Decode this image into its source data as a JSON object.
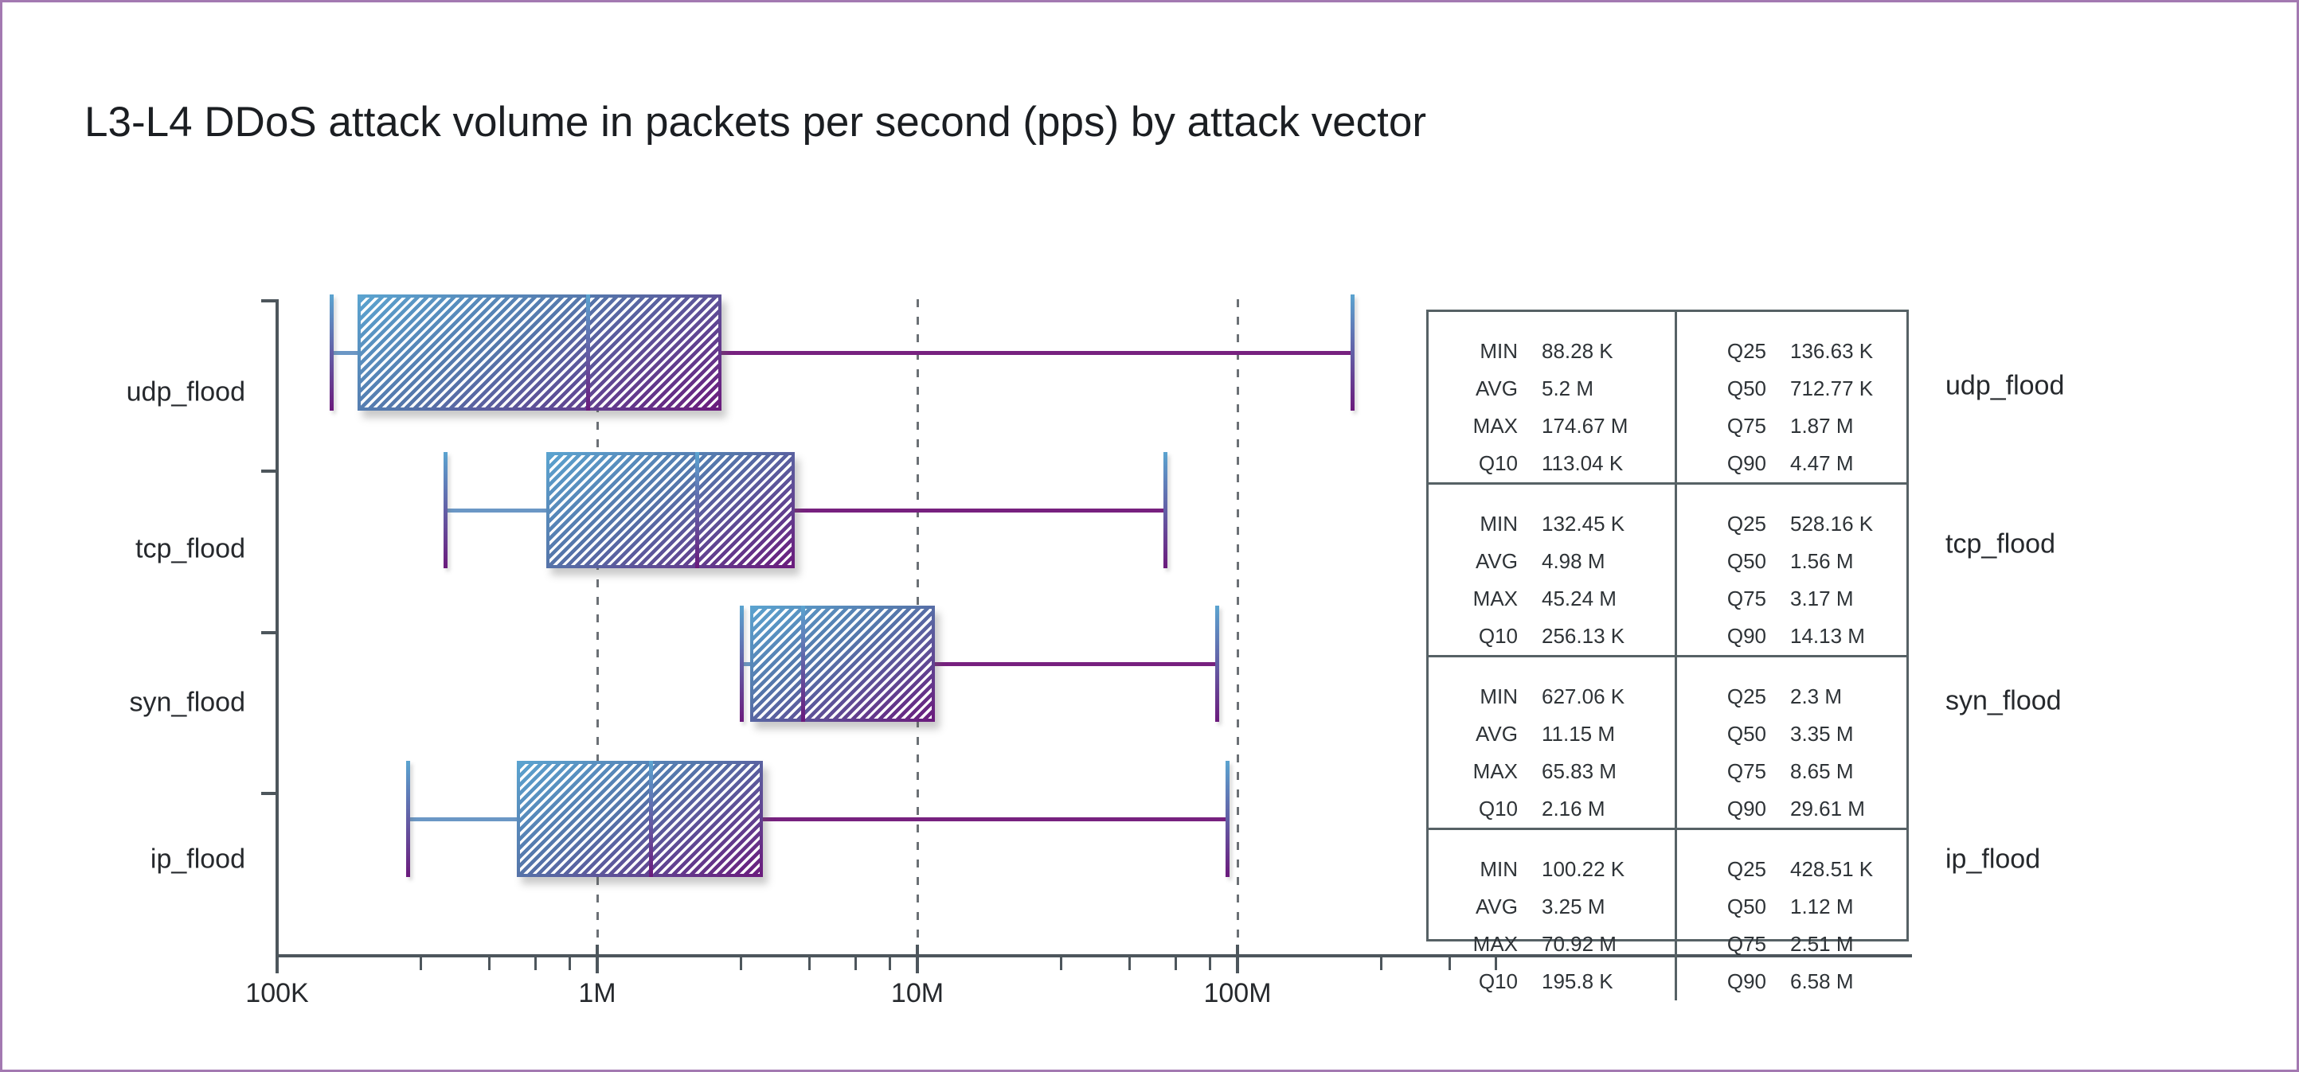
{
  "title": "L3-L4 DDoS attack volume in packets per second (pps) by attack vector",
  "colors": {
    "canvas_border": "#a379b1",
    "axis": "#4d565c",
    "grid_dash": "#6b7075",
    "gradient_blue": "#5ba4d0",
    "gradient_mid": "#5577ab",
    "gradient_purple": "#6b1a7c",
    "left_whisker_line": "#6b97c5",
    "right_whisker_line": "#77217f",
    "table_border": "#566165",
    "text": "#26292d",
    "title_text": "#1b1e22"
  },
  "stats_table": {
    "col1_keys": [
      "MIN",
      "AVG",
      "MAX",
      "Q10"
    ],
    "col2_keys": [
      "Q25",
      "Q50",
      "Q75",
      "Q90"
    ]
  },
  "chart_data": {
    "type": "box",
    "orientation": "horizontal",
    "title": "L3-L4 DDoS attack volume in packets per second (pps) by attack vector",
    "x_axis": {
      "scale": "log",
      "unit": "pps",
      "major_ticks": [
        {
          "label": "100K",
          "value": 100000
        },
        {
          "label": "1M",
          "value": 1000000
        },
        {
          "label": "10M",
          "value": 10000000
        },
        {
          "label": "100M",
          "value": 100000000
        }
      ],
      "minor_tick_values": [
        280000,
        460000,
        640000,
        820000,
        2800000,
        4600000,
        6400000,
        8200000,
        28000000,
        46000000,
        64000000,
        82000000,
        280000000,
        460000000,
        640000000
      ],
      "gridline_values": [
        1000000,
        10000000,
        100000000
      ],
      "grid": "dashed-vertical"
    },
    "categories": [
      "udp_flood",
      "tcp_flood",
      "syn_flood",
      "ip_flood"
    ],
    "box_semantics": {
      "box": [
        "q25",
        "q75"
      ],
      "median": "q50",
      "whisker_low": "q10",
      "whisker_high": "max"
    },
    "series": [
      {
        "name": "udp_flood",
        "values": {
          "min": 88280,
          "avg": 5200000,
          "max": 174670000,
          "q10": 113040,
          "q25": 136630,
          "q50": 712770,
          "q75": 1870000,
          "q90": 4470000
        },
        "display": {
          "MIN": "88.28 K",
          "AVG": "5.2 M",
          "MAX": "174.67 M",
          "Q10": "113.04 K",
          "Q25": "136.63 K",
          "Q50": "712.77 K",
          "Q75": "1.87 M",
          "Q90": "4.47 M"
        }
      },
      {
        "name": "tcp_flood",
        "values": {
          "min": 132450,
          "avg": 4980000,
          "max": 45240000,
          "q10": 256130,
          "q25": 528160,
          "q50": 1560000,
          "q75": 3170000,
          "q90": 14130000
        },
        "display": {
          "MIN": "132.45 K",
          "AVG": "4.98 M",
          "MAX": "45.24 M",
          "Q10": "256.13 K",
          "Q25": "528.16 K",
          "Q50": "1.56 M",
          "Q75": "3.17 M",
          "Q90": "14.13 M"
        }
      },
      {
        "name": "syn_flood",
        "values": {
          "min": 627060,
          "avg": 11150000,
          "max": 65830000,
          "q10": 2160000,
          "q25": 2300000,
          "q50": 3350000,
          "q75": 8650000,
          "q90": 29610000
        },
        "display": {
          "MIN": "627.06 K",
          "AVG": "11.15 M",
          "MAX": "65.83 M",
          "Q10": "2.16 M",
          "Q25": "2.3 M",
          "Q50": "3.35 M",
          "Q75": "8.65 M",
          "Q90": "29.61 M"
        }
      },
      {
        "name": "ip_flood",
        "values": {
          "min": 100220,
          "avg": 3250000,
          "max": 70920000,
          "q10": 195800,
          "q25": 428510,
          "q50": 1120000,
          "q75": 2510000,
          "q90": 6580000
        },
        "display": {
          "MIN": "100.22 K",
          "AVG": "3.25 M",
          "MAX": "70.92 M",
          "Q10": "195.8 K",
          "Q25": "428.51 K",
          "Q50": "1.12 M",
          "Q75": "2.51 M",
          "Q90": "6.58 M"
        }
      }
    ]
  }
}
